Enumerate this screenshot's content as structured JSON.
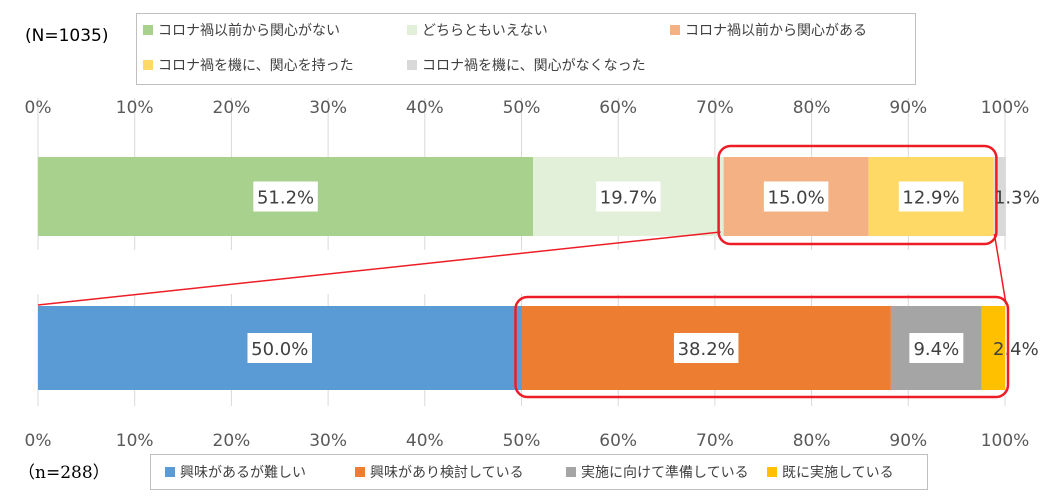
{
  "chart_data": [
    {
      "type": "bar",
      "orientation": "horizontal",
      "stacked": true,
      "sample_label": "(N=1035)",
      "axis_ticks": [
        "0%",
        "10%",
        "20%",
        "30%",
        "40%",
        "50%",
        "60%",
        "70%",
        "80%",
        "90%",
        "100%"
      ],
      "xlim": [
        0,
        100
      ],
      "legend_position": "top",
      "series": [
        {
          "name": "コロナ禍以前から関心がない",
          "value": 51.2,
          "label": "51.2%",
          "color": "#a9d18e"
        },
        {
          "name": "どちらともいえない",
          "value": 19.7,
          "label": "19.7%",
          "color": "#e2f0d9"
        },
        {
          "name": "コロナ禍以前から関心がある",
          "value": 15.0,
          "label": "15.0%",
          "color": "#f4b183"
        },
        {
          "name": "コロナ禍を機に、関心を持った",
          "value": 12.9,
          "label": "12.9%",
          "color": "#ffd966"
        },
        {
          "name": "コロナ禍を機に、関心がなくなった",
          "value": 1.3,
          "label": "1.3%",
          "color": "#d9d9d9"
        }
      ]
    },
    {
      "type": "bar",
      "orientation": "horizontal",
      "stacked": true,
      "sample_label": "（n=288）",
      "axis_ticks": [
        "0%",
        "10%",
        "20%",
        "30%",
        "40%",
        "50%",
        "60%",
        "70%",
        "80%",
        "90%",
        "100%"
      ],
      "xlim": [
        0,
        100
      ],
      "legend_position": "bottom",
      "series": [
        {
          "name": "興味があるが難しい",
          "value": 50.0,
          "label": "50.0%",
          "color": "#5b9bd5"
        },
        {
          "name": "興味があり検討している",
          "value": 38.2,
          "label": "38.2%",
          "color": "#ed7d31"
        },
        {
          "name": "実施に向けて準備している",
          "value": 9.4,
          "label": "9.4%",
          "color": "#a5a5a5"
        },
        {
          "name": "既に実施している",
          "value": 2.4,
          "label": "2.4%",
          "color": "#ffc000"
        }
      ]
    }
  ],
  "highlight_color": "#ee1c25"
}
